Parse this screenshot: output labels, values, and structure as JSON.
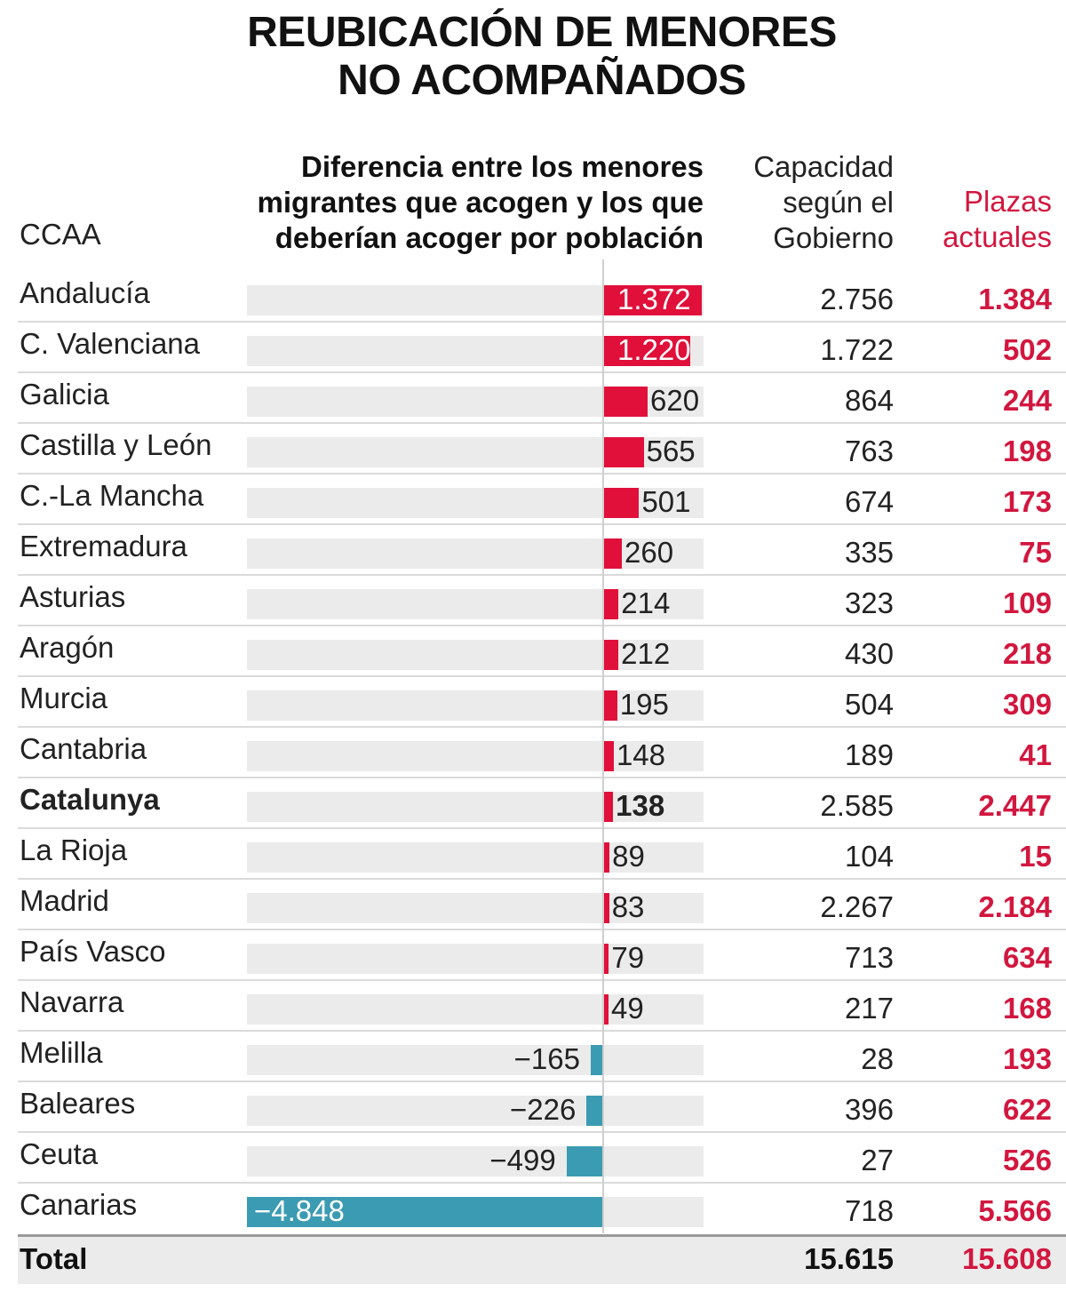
{
  "title_lines": [
    "REUBICACIÓN DE MENORES",
    "NO ACOMPAÑADOS"
  ],
  "headers": {
    "ccaa": "CCAA",
    "diff_lines": [
      "Diferencia entre los menores",
      "migrantes que acogen y los que",
      "deberían acoger por población"
    ],
    "capacity_lines": [
      "Capacidad",
      "según el",
      "Gobierno"
    ],
    "places_lines": [
      "Plazas",
      "actuales"
    ]
  },
  "colors": {
    "positive_bar": "#e0103a",
    "negative_bar": "#3b9bb2",
    "places_text": "#d2173f",
    "track": "#ebebeb"
  },
  "chart_data": {
    "type": "bar",
    "categories": [
      "Andalucía",
      "C. Valenciana",
      "Galicia",
      "Castilla y León",
      "C.-La Mancha",
      "Extremadura",
      "Asturias",
      "Aragón",
      "Murcia",
      "Cantabria",
      "Catalunya",
      "La Rioja",
      "Madrid",
      "País Vasco",
      "Navarra",
      "Melilla",
      "Baleares",
      "Ceuta",
      "Canarias"
    ],
    "values": [
      1372,
      1220,
      620,
      565,
      501,
      260,
      214,
      212,
      195,
      148,
      138,
      89,
      83,
      79,
      49,
      -165,
      -226,
      -499,
      -4848
    ],
    "value_labels": [
      "1.372",
      "1.220",
      "620",
      "565",
      "501",
      "260",
      "214",
      "212",
      "195",
      "148",
      "138",
      "89",
      "83",
      "79",
      "49",
      "−165",
      "−226",
      "−499",
      "−4.848"
    ],
    "xlim": [
      -4848,
      1400
    ],
    "highlight": "Catalunya"
  },
  "table": {
    "capacity": [
      "2.756",
      "1.722",
      "864",
      "763",
      "674",
      "335",
      "323",
      "430",
      "504",
      "189",
      "2.585",
      "104",
      "2.267",
      "713",
      "217",
      "28",
      "396",
      "27",
      "718"
    ],
    "places": [
      "1.384",
      "502",
      "244",
      "198",
      "173",
      "75",
      "109",
      "218",
      "309",
      "41",
      "2.447",
      "15",
      "2.184",
      "634",
      "168",
      "193",
      "622",
      "526",
      "5.566"
    ]
  },
  "total": {
    "label": "Total",
    "capacity": "15.615",
    "places": "15.608"
  }
}
